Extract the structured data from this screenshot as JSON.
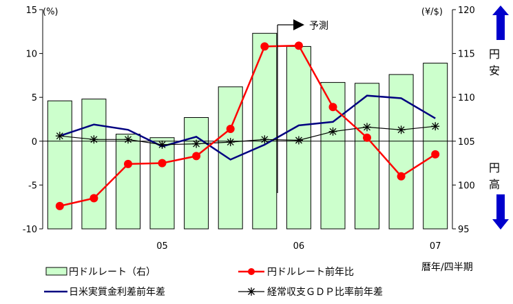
{
  "chart_data": {
    "type": "bar",
    "x_ticks": [
      "05",
      "06",
      "07"
    ],
    "x_axis_caption": "暦年/四半期",
    "left_axis": {
      "unit": "(%)",
      "ylim": [
        -10,
        15
      ],
      "ticks": [
        "15",
        "10",
        "5",
        "0",
        "-5",
        "-10"
      ]
    },
    "right_axis": {
      "unit": "(¥/$)",
      "ylim": [
        95,
        120
      ],
      "ticks": [
        "120",
        "115",
        "110",
        "105",
        "100",
        "95"
      ]
    },
    "forecast_label": "予測",
    "forecast_start_index": 7,
    "right_side_labels": {
      "upper": [
        "円",
        "安"
      ],
      "lower": [
        "円",
        "高"
      ]
    },
    "series": [
      {
        "name": "円ドルレート（右）",
        "kind": "bar",
        "axis": "right",
        "values": [
          109.6,
          109.8,
          105.8,
          105.4,
          107.7,
          111.2,
          117.3,
          115.8,
          111.7,
          111.6,
          112.6,
          113.9
        ]
      },
      {
        "name": "円ドルレート前年比",
        "kind": "line-marker",
        "axis": "left",
        "values": [
          -7.4,
          -6.5,
          -2.6,
          -2.5,
          -1.7,
          1.4,
          10.8,
          10.9,
          3.9,
          0.4,
          -4.0,
          -1.5
        ]
      },
      {
        "name": "日米実質金利差前年差",
        "kind": "line",
        "axis": "left",
        "values": [
          0.6,
          1.9,
          1.3,
          -0.6,
          0.5,
          -2.1,
          -0.4,
          1.8,
          2.2,
          5.2,
          4.9,
          2.6
        ]
      },
      {
        "name": "経常収支ＧＤＰ比率前年差",
        "kind": "line-star",
        "axis": "left",
        "values": [
          0.6,
          0.2,
          0.2,
          -0.4,
          -0.3,
          -0.1,
          0.2,
          0.1,
          1.1,
          1.6,
          1.3,
          1.7
        ]
      }
    ],
    "colors": {
      "bar_fill": "#ccffcc",
      "bar_stroke": "#000000",
      "rate_yoy": "#ff0000",
      "real_rate": "#000080",
      "current_account": "#000000",
      "arrow": "#0000cc"
    },
    "grid": false,
    "legend_position": "bottom"
  }
}
